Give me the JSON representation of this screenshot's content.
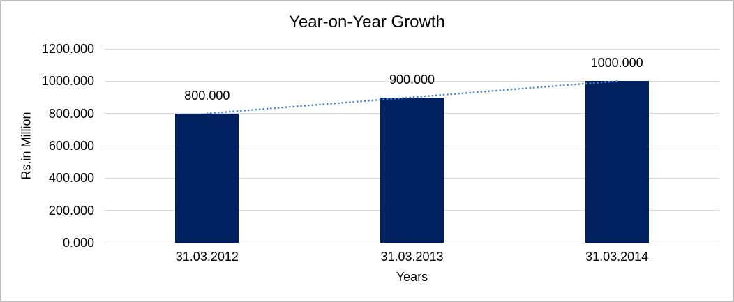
{
  "window": {
    "background": "#ffffff",
    "border_color": "#bdbdbd"
  },
  "chart_data": {
    "type": "bar",
    "title": "Year-on-Year Growth",
    "xlabel": "Years",
    "ylabel": "Rs.in Million",
    "categories": [
      "31.03.2012",
      "31.03.2013",
      "31.03.2014"
    ],
    "values": [
      800,
      900,
      1000
    ],
    "data_labels": [
      "800.000",
      "900.000",
      "1000.000"
    ],
    "ylim": [
      0,
      1200
    ],
    "y_tick_values": [
      0,
      200,
      400,
      600,
      800,
      1000,
      1200
    ],
    "y_tick_labels": [
      "0.000",
      "200.000",
      "400.000",
      "600.000",
      "800.000",
      "1000.000",
      "1200.000"
    ],
    "grid": true,
    "legend": false,
    "trendline": {
      "type": "linear",
      "style": "dotted",
      "color": "#4a86c8"
    },
    "colors": {
      "bar": "#002060",
      "gridline": "#d9d9d9",
      "axis_line": "#d9d9d9",
      "text": "#000000"
    }
  }
}
